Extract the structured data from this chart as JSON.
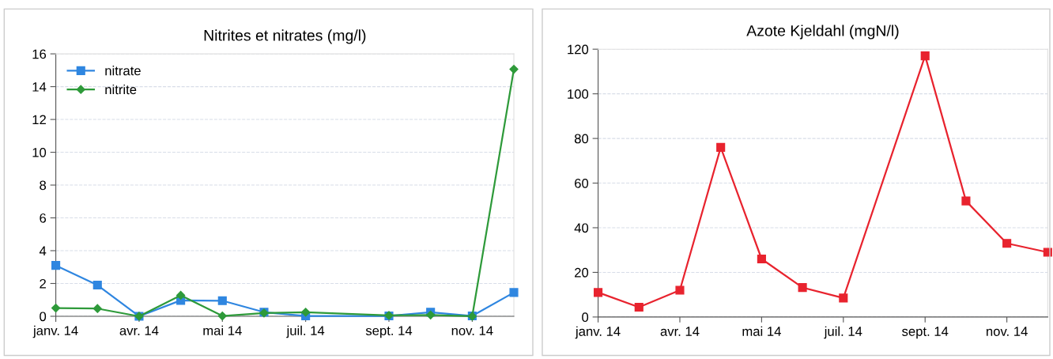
{
  "chart_data": [
    {
      "type": "line",
      "title": "Nitrites et nitrates (mg/l)",
      "categories": [
        "janv. 14",
        null,
        "avr. 14",
        null,
        "mai 14",
        null,
        "juil. 14",
        null,
        "sept. 14",
        null,
        "nov. 14",
        null
      ],
      "series": [
        {
          "name": "nitrate",
          "color": "#2f86e0",
          "marker": "square",
          "values": [
            3.1,
            1.9,
            0,
            0.97,
            0.95,
            0.25,
            0.02,
            null,
            0.02,
            0.25,
            0.02,
            1.45
          ]
        },
        {
          "name": "nitrite",
          "color": "#2e9a3a",
          "marker": "diamond",
          "values": [
            0.5,
            0.47,
            0,
            1.28,
            0.02,
            0.2,
            0.25,
            null,
            0.05,
            0.08,
            0,
            15.06
          ]
        }
      ],
      "ylim": [
        0,
        16
      ],
      "yticks": [
        0,
        2,
        4,
        6,
        8,
        10,
        12,
        14,
        16
      ],
      "grid": "y",
      "legend": "top left"
    },
    {
      "type": "line",
      "title": "Azote Kjeldahl (mgN/l)",
      "categories": [
        "janv. 14",
        null,
        "avr. 14",
        null,
        "mai 14",
        null,
        "juil. 14",
        null,
        "sept. 14",
        null,
        "nov. 14",
        null
      ],
      "series": [
        {
          "color": "#e8232e",
          "marker": "square",
          "values": [
            11,
            4.4,
            12,
            76,
            26,
            13.2,
            8.5,
            null,
            117,
            52,
            33,
            29
          ]
        }
      ],
      "ylim": [
        0,
        120
      ],
      "yticks": [
        0,
        20,
        40,
        60,
        80,
        100,
        120
      ],
      "grid": "y",
      "legend": false
    }
  ]
}
